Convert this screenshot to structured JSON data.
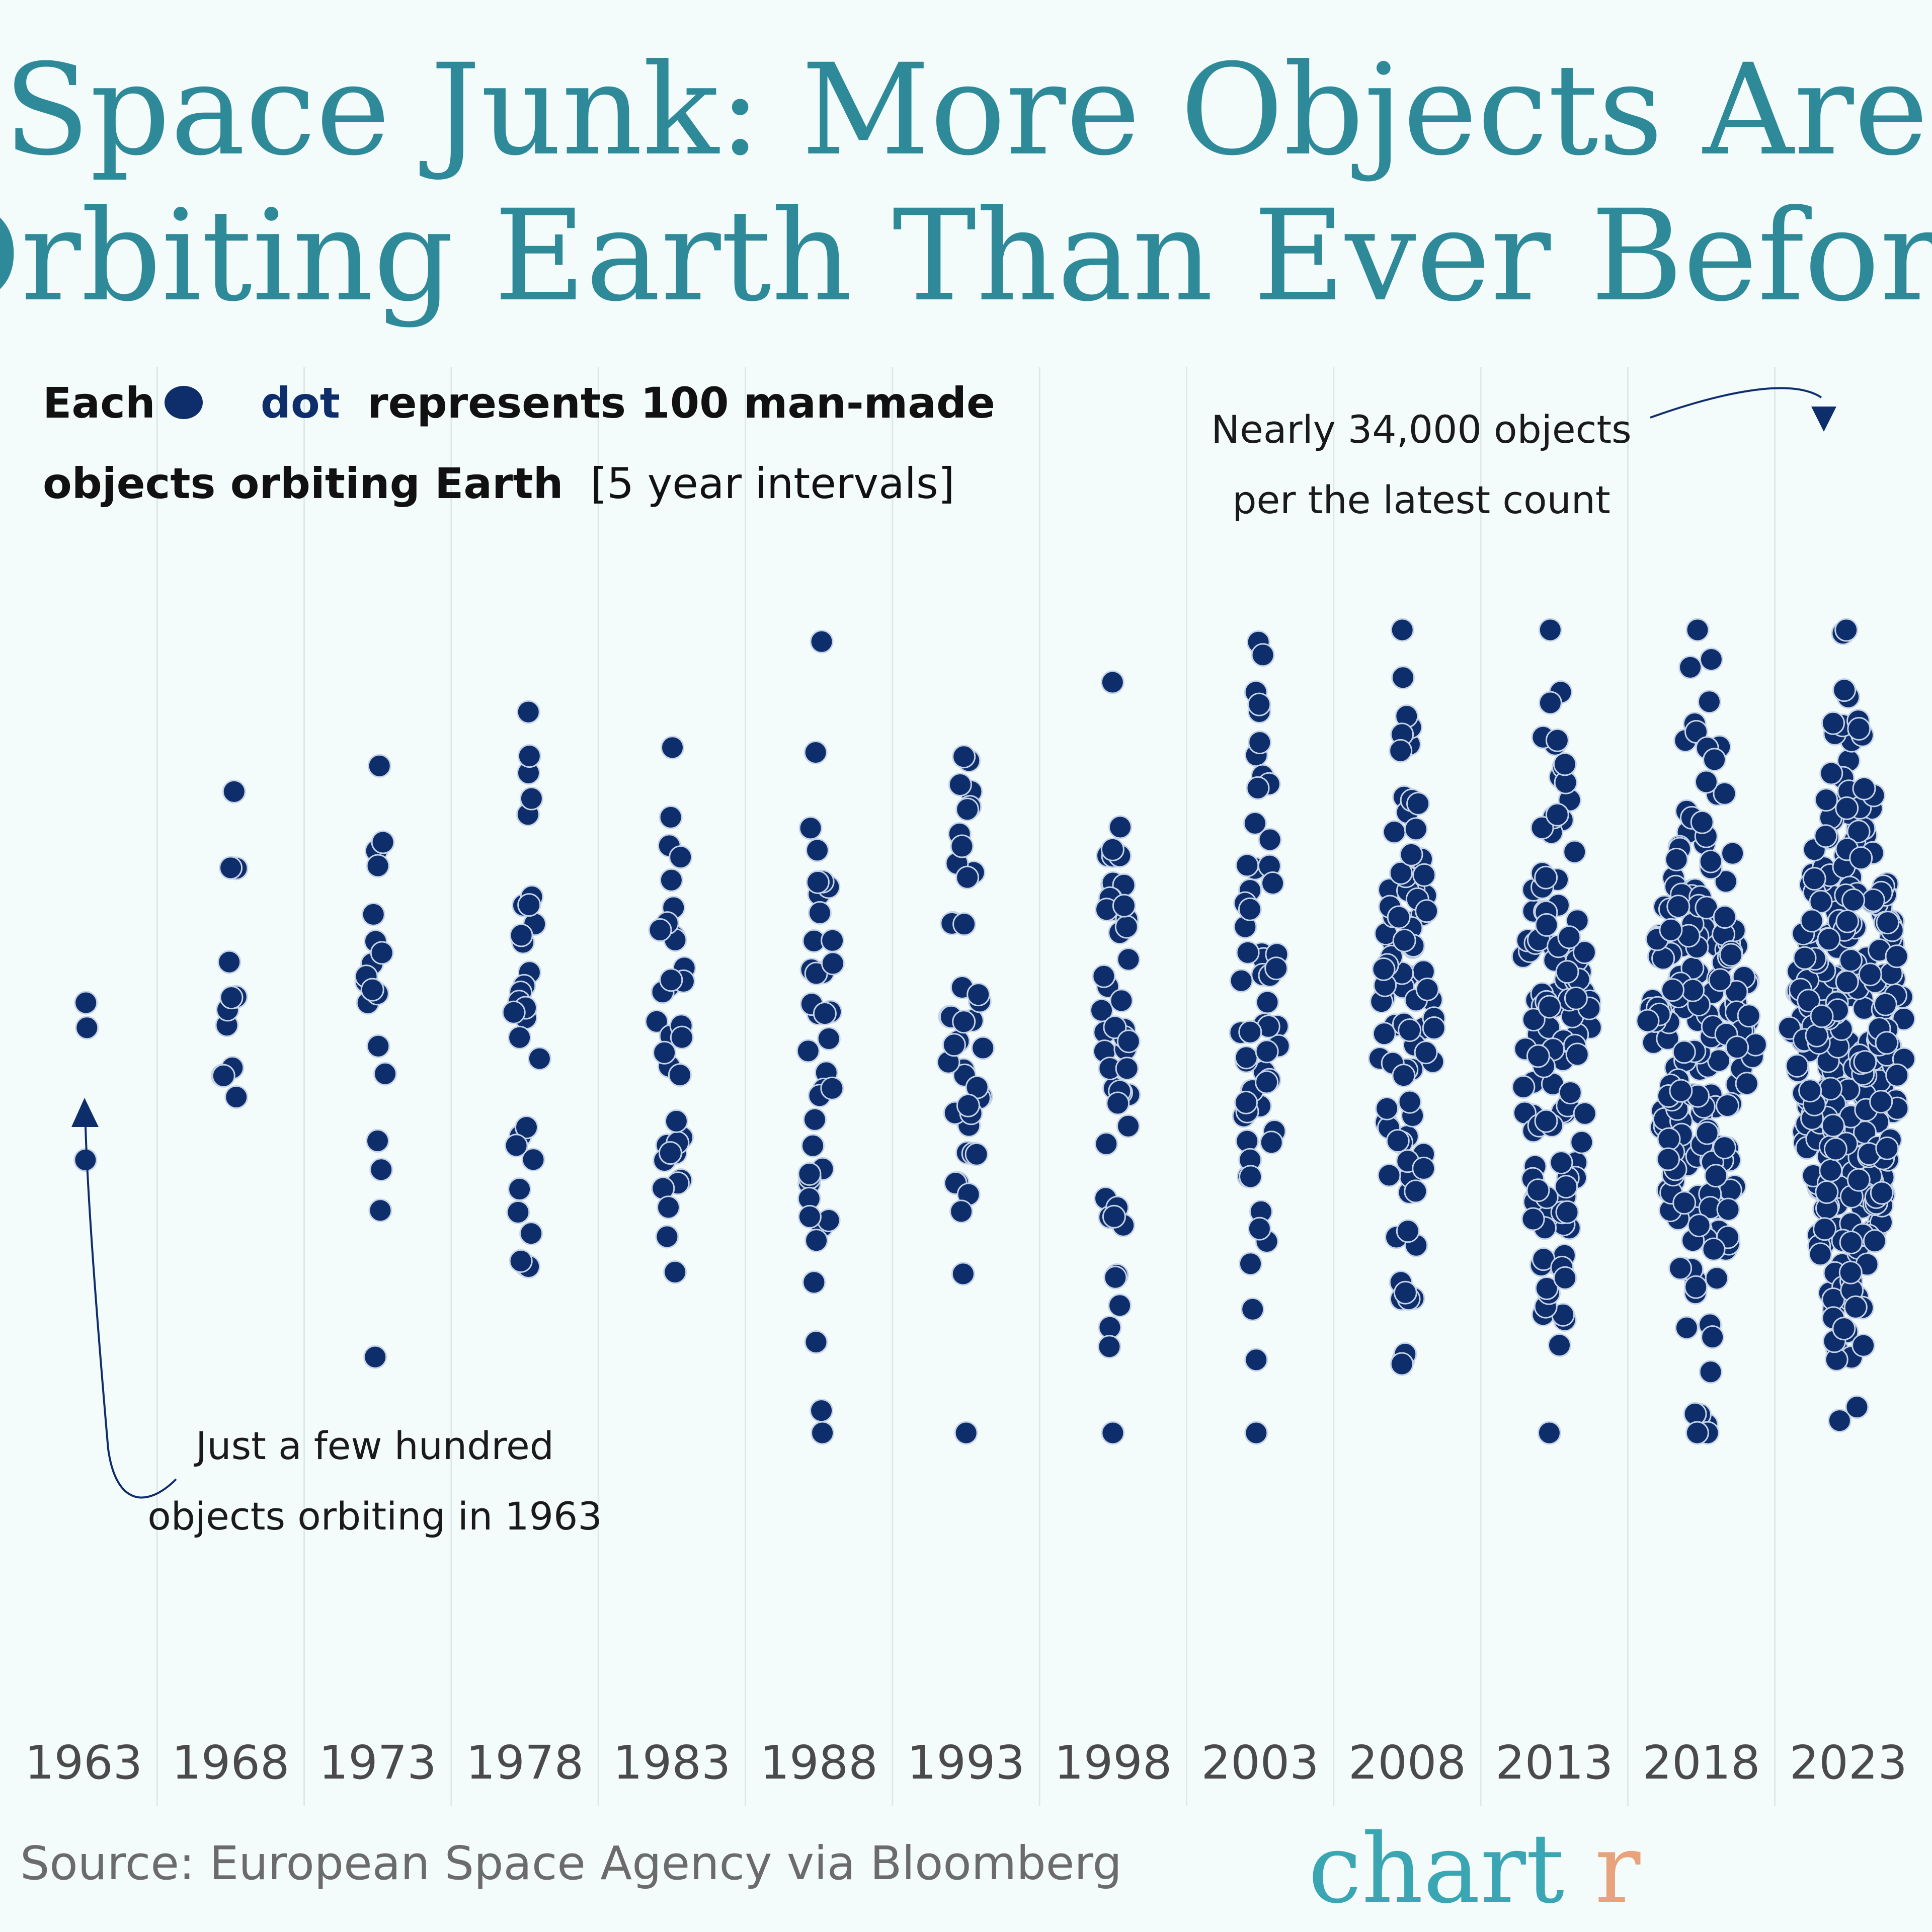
{
  "title_line1": "Space Junk: More Objects Are",
  "title_line2": "Orbiting Earth Than Ever Before",
  "legend": {
    "each": "Each",
    "dot_word": "dot",
    "rest_line1": "represents 100 man-made",
    "line2_bold": "objects orbiting Earth",
    "line2_normal": "[5 year intervals]"
  },
  "annotations": {
    "top_line1": "Nearly 34,000 objects",
    "top_line2": "per the latest count",
    "bottom_line1": "Just a few hundred",
    "bottom_line2": "objects orbiting in 1963"
  },
  "source": "Source: European Space Agency via Bloomberg",
  "brand": {
    "main": "chart",
    "accent": "r"
  },
  "colors": {
    "title": "#2e8a99",
    "dot": "#0d2d6b",
    "background": "#f3fbfb",
    "brand": "#3aa6b4",
    "brand_accent": "#e8a27c"
  },
  "chart_data": {
    "type": "scatter",
    "subtype": "beeswarm",
    "unit": "Each dot represents 100 man-made objects orbiting Earth",
    "categories": [
      "1963",
      "1968",
      "1973",
      "1978",
      "1983",
      "1988",
      "1993",
      "1998",
      "2003",
      "2008",
      "2013",
      "2018",
      "2023"
    ],
    "dot_counts": [
      3,
      12,
      20,
      30,
      35,
      40,
      45,
      50,
      60,
      90,
      130,
      210,
      340
    ],
    "approx_objects": [
      300,
      1200,
      2000,
      3000,
      3500,
      4000,
      4500,
      5000,
      6000,
      9000,
      13000,
      21000,
      34000
    ],
    "grid": true
  }
}
